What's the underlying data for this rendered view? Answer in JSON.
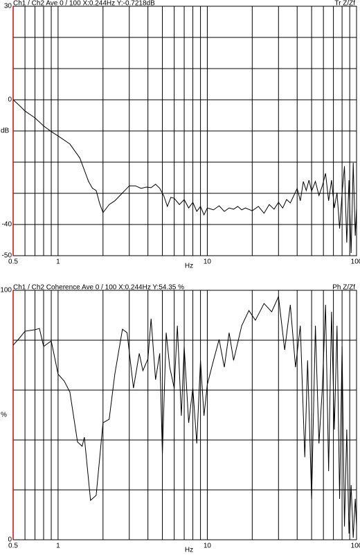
{
  "chart_data": [
    {
      "type": "line",
      "title": "Ch1 / Ch2  Ave 0 / 100  X:0.244Hz  Y:-0.7218dB",
      "corner_label": "Tr Z/Zf",
      "xlabel": "Hz",
      "ylabel": "dB",
      "xscale": "log",
      "grid": true,
      "xlim": [
        0.5,
        100
      ],
      "xticks": [
        0.5,
        {
          "value": 0.6,
          "label": null
        },
        {
          "value": 0.7,
          "label": null
        },
        {
          "value": 0.8,
          "label": null
        },
        {
          "value": 0.9,
          "label": null
        },
        1,
        {
          "value": 2,
          "label": null
        },
        {
          "value": 3,
          "label": null
        },
        {
          "value": 4,
          "label": null
        },
        {
          "value": 5,
          "label": null
        },
        {
          "value": 6,
          "label": null
        },
        {
          "value": 7,
          "label": null
        },
        {
          "value": 8,
          "label": null
        },
        {
          "value": 9,
          "label": null
        },
        10,
        {
          "value": 20,
          "label": null
        },
        {
          "value": 30,
          "label": null
        },
        {
          "value": 40,
          "label": null
        },
        {
          "value": 50,
          "label": null
        },
        {
          "value": 60,
          "label": null
        },
        {
          "value": 70,
          "label": null
        },
        {
          "value": 80,
          "label": null
        },
        {
          "value": 90,
          "label": null
        },
        100
      ],
      "ylim": [
        -50,
        30
      ],
      "yticks": [
        -50,
        -40,
        {
          "value": -30,
          "label": null
        },
        {
          "value": -20,
          "label": null
        },
        {
          "value": -10,
          "label": null
        },
        0,
        {
          "value": 10,
          "label": null
        },
        {
          "value": 20,
          "label": null
        },
        30
      ],
      "x": [
        0.5,
        0.55,
        0.6,
        0.7,
        0.8,
        0.9,
        1.0,
        1.2,
        1.4,
        1.6,
        1.7,
        1.8,
        1.9,
        2.0,
        2.2,
        2.4,
        2.6,
        2.8,
        3.0,
        3.3,
        3.6,
        3.9,
        4.2,
        4.5,
        4.8,
        5.1,
        5.4,
        5.7,
        6.0,
        6.5,
        7.0,
        7.5,
        8.0,
        8.5,
        9.0,
        9.5,
        10,
        11,
        12,
        13,
        14,
        15,
        16,
        17,
        18,
        20,
        22,
        24,
        26,
        28,
        30,
        32,
        34,
        36,
        38,
        40,
        42,
        44,
        46,
        48,
        50,
        53,
        56,
        59,
        62,
        65,
        68,
        71,
        74,
        77,
        80,
        83,
        86,
        89,
        92,
        95,
        98,
        100
      ],
      "series": [
        {
          "color": "#000000",
          "values": [
            0,
            -1.8,
            -3.6,
            -5.8,
            -8.4,
            -10.2,
            -11.6,
            -14.2,
            -18.7,
            -26.2,
            -28.4,
            -29.1,
            -33.3,
            -36.2,
            -33.6,
            -32.4,
            -30.7,
            -29.1,
            -27.6,
            -27.6,
            -28.4,
            -28.0,
            -28.2,
            -27.1,
            -28.4,
            -30.7,
            -34.2,
            -31.3,
            -31.6,
            -33.6,
            -32.0,
            -34.7,
            -32.9,
            -35.8,
            -34.2,
            -36.9,
            -34.7,
            -35.3,
            -34.0,
            -35.8,
            -34.7,
            -35.1,
            -34.2,
            -35.3,
            -34.7,
            -35.6,
            -34.2,
            -36.4,
            -33.6,
            -35.1,
            -32.9,
            -34.7,
            -32.0,
            -33.1,
            -30.7,
            -28.4,
            -32.4,
            -26.2,
            -29.1,
            -25.8,
            -29.3,
            -26.2,
            -30.7,
            -27.6,
            -23.6,
            -32.4,
            -25.8,
            -34.7,
            -29.8,
            -41.3,
            -30.0,
            -21.3,
            -45.8,
            -25.8,
            -49.1,
            -20.2,
            -43.6,
            -34.7
          ]
        }
      ]
    },
    {
      "type": "line",
      "title": "Ch1 / Ch2  Coherence Ave 0 / 100  X:0.244Hz  Y:54.35 %",
      "corner_label": "Ph Z/Zf",
      "xlabel": "Hz",
      "ylabel": "%",
      "xscale": "log",
      "grid": true,
      "xlim": [
        0.5,
        100
      ],
      "xticks": [
        0.5,
        {
          "value": 0.6,
          "label": null
        },
        {
          "value": 0.7,
          "label": null
        },
        {
          "value": 0.8,
          "label": null
        },
        {
          "value": 0.9,
          "label": null
        },
        1,
        {
          "value": 2,
          "label": null
        },
        {
          "value": 3,
          "label": null
        },
        {
          "value": 4,
          "label": null
        },
        {
          "value": 5,
          "label": null
        },
        {
          "value": 6,
          "label": null
        },
        {
          "value": 7,
          "label": null
        },
        {
          "value": 8,
          "label": null
        },
        {
          "value": 9,
          "label": null
        },
        10,
        {
          "value": 20,
          "label": null
        },
        {
          "value": 30,
          "label": null
        },
        {
          "value": 40,
          "label": null
        },
        {
          "value": 50,
          "label": null
        },
        {
          "value": 60,
          "label": null
        },
        {
          "value": 70,
          "label": null
        },
        {
          "value": 80,
          "label": null
        },
        {
          "value": 90,
          "label": null
        },
        100
      ],
      "ylim": [
        0,
        100
      ],
      "yticks": [
        0,
        {
          "value": 20,
          "label": null
        },
        {
          "value": 40,
          "label": null
        },
        {
          "value": 60,
          "label": null
        },
        {
          "value": 80,
          "label": null
        },
        100
      ],
      "x": [
        0.5,
        0.55,
        0.6,
        0.7,
        0.75,
        0.8,
        0.9,
        1.0,
        1.1,
        1.2,
        1.35,
        1.45,
        1.5,
        1.65,
        1.8,
        2.0,
        2.2,
        2.4,
        2.7,
        2.9,
        3.2,
        3.5,
        3.7,
        4.0,
        4.2,
        4.5,
        4.8,
        5.0,
        5.3,
        5.6,
        6.0,
        6.3,
        6.7,
        7.0,
        7.5,
        8.0,
        8.5,
        9.0,
        9.5,
        10,
        11,
        12,
        13,
        14,
        15,
        17,
        19,
        21,
        24,
        27,
        30,
        33,
        36,
        39,
        42,
        45,
        47,
        50,
        53,
        56,
        59,
        62,
        65,
        68,
        71,
        74,
        77,
        80,
        83,
        86,
        89,
        92,
        95,
        98,
        100
      ],
      "series": [
        {
          "color": "#000000",
          "values": [
            78,
            80.8,
            83.6,
            84.2,
            84.7,
            77.5,
            79.7,
            66.4,
            63.6,
            59.2,
            39.2,
            37.5,
            41.1,
            15.8,
            17.8,
            46.9,
            48.3,
            66.4,
            84.4,
            83,
            60.8,
            74.7,
            67.8,
            72.5,
            88.6,
            64.2,
            74.7,
            34.4,
            83,
            69.2,
            60.8,
            85.8,
            49.7,
            77.5,
            46.9,
            60.8,
            38.6,
            71.9,
            49.7,
            62.2,
            71.9,
            80.3,
            69.2,
            83,
            71.9,
            85.8,
            91.9,
            88,
            94.7,
            91.4,
            97.5,
            76.1,
            94.2,
            69.2,
            85.8,
            33.1,
            71.9,
            16.4,
            85.8,
            38.6,
            60.8,
            94.2,
            27.5,
            91.4,
            44.2,
            85.8,
            16.4,
            77.5,
            5.3,
            44.2,
            2.5,
            21.9,
            0.8,
            16.4,
            5.3
          ]
        }
      ]
    }
  ]
}
